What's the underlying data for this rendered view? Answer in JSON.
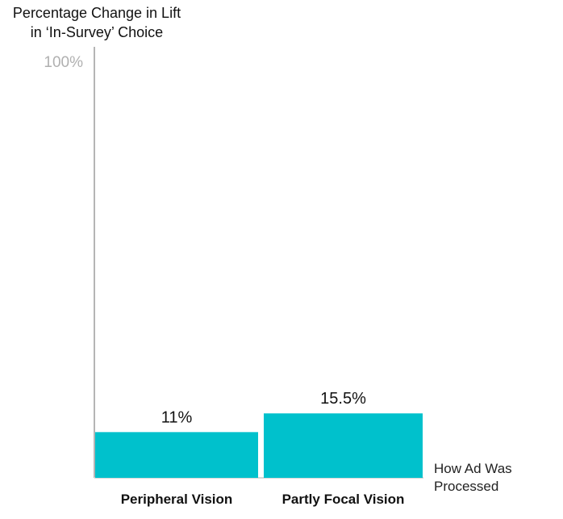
{
  "chart_data": {
    "type": "bar",
    "ylabel": "Percentage Change in Lift in ‘In-Survey’ Choice",
    "ylabel_lines": [
      "Percentage Change in Lift",
      "in ‘In-Survey’ Choice"
    ],
    "xlabel": "How Ad Was Processed",
    "xlabel_lines": [
      "How Ad Was",
      "Processed"
    ],
    "categories": [
      "Peripheral Vision",
      "Partly Focal Vision"
    ],
    "values": [
      11,
      15.5
    ],
    "data_labels": [
      "11%",
      "15.5%"
    ],
    "yticks": [
      {
        "value": 100,
        "label": "100%"
      }
    ],
    "ylim": [
      0,
      100
    ],
    "grid": false,
    "colors": {
      "bar": "#00C1CC",
      "axis": "#B5B5B5",
      "tick_label": "#B0B0B0",
      "text": "#111111"
    }
  }
}
